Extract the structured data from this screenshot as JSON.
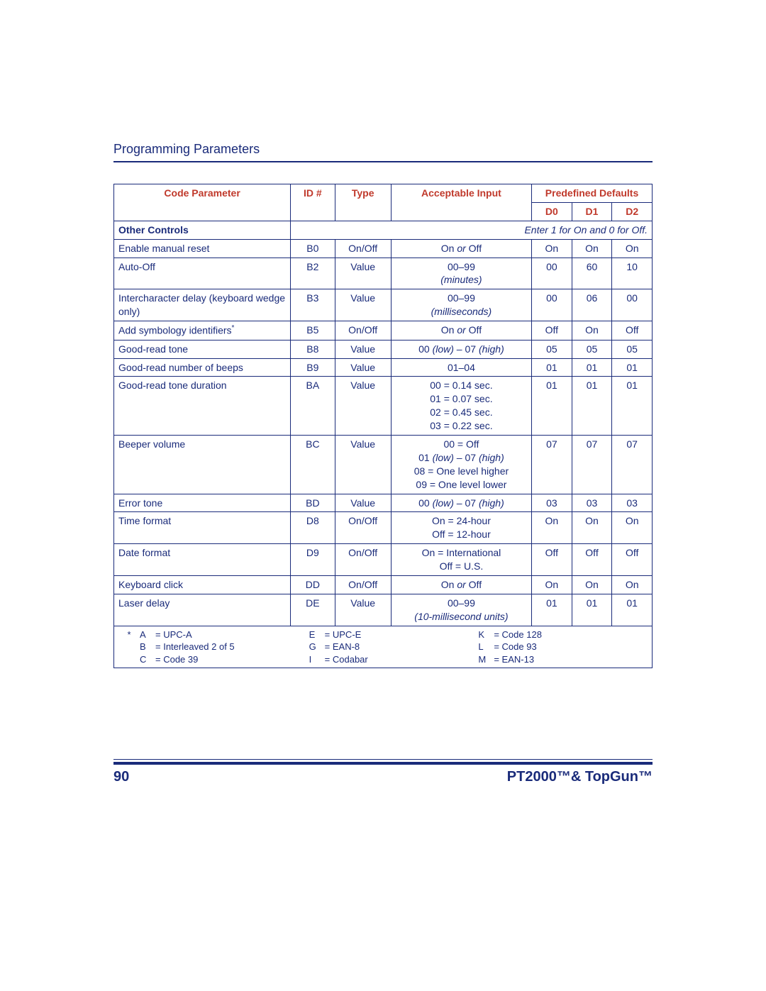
{
  "section_title": "Programming Parameters",
  "headers": {
    "code_parameter": "Code Parameter",
    "id": "ID #",
    "type": "Type",
    "acceptable_input": "Acceptable Input",
    "predefined_defaults": "Predefined Defaults",
    "d0": "D0",
    "d1": "D1",
    "d2": "D2"
  },
  "section_row": {
    "label": "Other Controls",
    "note": "Enter 1 for On and 0 for Off."
  },
  "rows": [
    {
      "param": "Enable manual reset",
      "id": "B0",
      "type": "On/Off",
      "input": [
        {
          "t": "On "
        },
        {
          "t": "or ",
          "i": true
        },
        {
          "t": "Off"
        }
      ],
      "d0": "On",
      "d1": "On",
      "d2": "On"
    },
    {
      "param": "Auto-Off",
      "id": "B2",
      "type": "Value",
      "input": [
        {
          "t": "00–99"
        },
        {
          "br": true
        },
        {
          "t": "(minutes)",
          "i": true
        }
      ],
      "d0": "00",
      "d1": "60",
      "d2": "10"
    },
    {
      "param": "Intercharacter delay (keyboard wedge only)",
      "id": "B3",
      "type": "Value",
      "input": [
        {
          "t": "00–99"
        },
        {
          "br": true
        },
        {
          "t": "(milliseconds)",
          "i": true
        }
      ],
      "d0": "00",
      "d1": "06",
      "d2": "00"
    },
    {
      "param": "Add symbology identifiers",
      "star": true,
      "id": "B5",
      "type": "On/Off",
      "input": [
        {
          "t": "On "
        },
        {
          "t": "or ",
          "i": true
        },
        {
          "t": "Off"
        }
      ],
      "d0": "Off",
      "d1": "On",
      "d2": "Off"
    },
    {
      "param": "Good-read tone",
      "id": "B8",
      "type": "Value",
      "input": [
        {
          "t": "00 "
        },
        {
          "t": "(low)",
          "i": true
        },
        {
          "t": " – 07 "
        },
        {
          "t": "(high)",
          "i": true
        }
      ],
      "d0": "05",
      "d1": "05",
      "d2": "05"
    },
    {
      "param": "Good-read number of beeps",
      "id": "B9",
      "type": "Value",
      "input": [
        {
          "t": "01–04"
        }
      ],
      "d0": "01",
      "d1": "01",
      "d2": "01"
    },
    {
      "param": "Good-read tone duration",
      "id": "BA",
      "type": "Value",
      "input": [
        {
          "t": "00 = 0.14 sec."
        },
        {
          "br": true
        },
        {
          "t": "01 = 0.07 sec."
        },
        {
          "br": true
        },
        {
          "t": "02 = 0.45 sec."
        },
        {
          "br": true
        },
        {
          "t": "03 = 0.22 sec."
        }
      ],
      "d0": "01",
      "d1": "01",
      "d2": "01"
    },
    {
      "param": "Beeper volume",
      "id": "BC",
      "type": "Value",
      "input": [
        {
          "t": "00 = Off"
        },
        {
          "br": true
        },
        {
          "t": "01 "
        },
        {
          "t": "(low)",
          "i": true
        },
        {
          "t": " – 07 "
        },
        {
          "t": "(high)",
          "i": true
        },
        {
          "br": true
        },
        {
          "t": "08 = One level higher"
        },
        {
          "br": true
        },
        {
          "t": "09 = One level lower"
        }
      ],
      "d0": "07",
      "d1": "07",
      "d2": "07"
    },
    {
      "param": "Error tone",
      "id": "BD",
      "type": "Value",
      "input": [
        {
          "t": "00 "
        },
        {
          "t": "(low)",
          "i": true
        },
        {
          "t": " – 07 "
        },
        {
          "t": "(high)",
          "i": true
        }
      ],
      "d0": "03",
      "d1": "03",
      "d2": "03"
    },
    {
      "param": "Time format",
      "id": "D8",
      "type": "On/Off",
      "input": [
        {
          "t": "On = 24-hour"
        },
        {
          "br": true
        },
        {
          "t": "Off = 12-hour"
        }
      ],
      "d0": "On",
      "d1": "On",
      "d2": "On"
    },
    {
      "param": "Date format",
      "id": "D9",
      "type": "On/Off",
      "input": [
        {
          "t": "On = International"
        },
        {
          "br": true
        },
        {
          "t": "Off = U.S."
        }
      ],
      "d0": "Off",
      "d1": "Off",
      "d2": "Off"
    },
    {
      "param": "Keyboard click",
      "id": "DD",
      "type": "On/Off",
      "input": [
        {
          "t": "On "
        },
        {
          "t": "or ",
          "i": true
        },
        {
          "t": "Off"
        }
      ],
      "d0": "On",
      "d1": "On",
      "d2": "On"
    },
    {
      "param": "Laser delay",
      "id": "DE",
      "type": "Value",
      "input": [
        {
          "t": "00–99"
        },
        {
          "br": true
        },
        {
          "t": "(10-millisecond units)",
          "i": true
        }
      ],
      "d0": "01",
      "d1": "01",
      "d2": "01"
    }
  ],
  "footnote": {
    "star": "*",
    "col1": [
      {
        "s": "A",
        "e": "= UPC-A"
      },
      {
        "s": "B",
        "e": "= Interleaved 2 of 5"
      },
      {
        "s": "C",
        "e": "= Code 39"
      }
    ],
    "col2": [
      {
        "s": "E",
        "e": "= UPC-E"
      },
      {
        "s": "G",
        "e": "= EAN-8"
      },
      {
        "s": "I",
        "e": "= Codabar"
      }
    ],
    "col3": [
      {
        "s": "K",
        "e": "= Code 128"
      },
      {
        "s": "L",
        "e": "= Code 93"
      },
      {
        "s": "M",
        "e": "= EAN-13"
      }
    ]
  },
  "footer": {
    "page_num": "90",
    "product": "PT2000™& TopGun™"
  },
  "colors": {
    "primary": "#1a2b7a",
    "accent": "#c0392b"
  }
}
